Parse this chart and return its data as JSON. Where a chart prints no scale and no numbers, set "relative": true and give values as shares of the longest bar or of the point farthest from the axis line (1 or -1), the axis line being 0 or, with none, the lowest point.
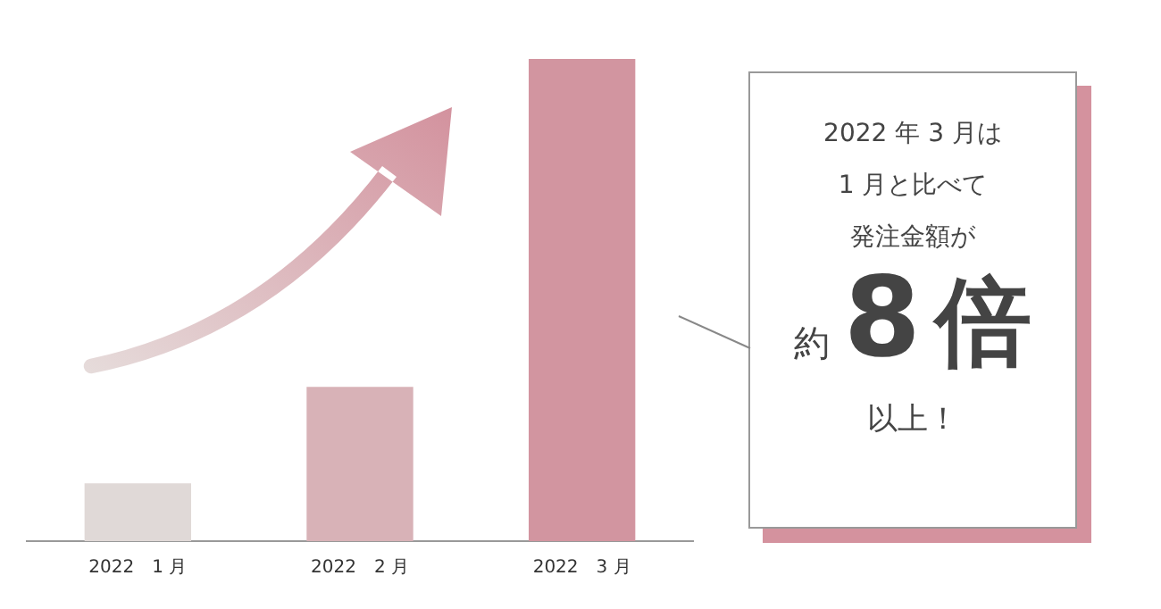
{
  "chart_data": {
    "type": "bar",
    "relative": true,
    "categories": [
      "2022　1 月",
      "2022　2 月",
      "2022　3 月"
    ],
    "values": [
      0.12,
      0.32,
      1
    ],
    "colors": [
      "#e0d9d7",
      "#d8b2b7",
      "#d295a0"
    ],
    "annotations": [
      "2022 年 3 月は",
      "1 月と比べて",
      "発注金額が",
      "約",
      "8",
      "倍",
      "以上！"
    ]
  }
}
